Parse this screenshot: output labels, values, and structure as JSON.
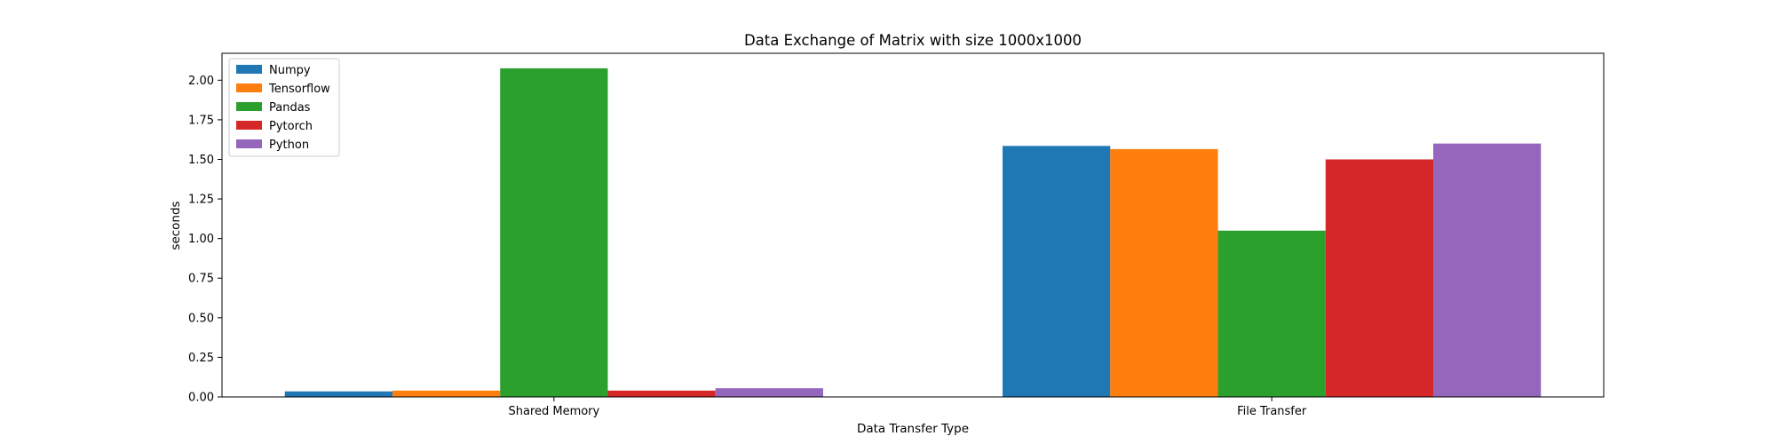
{
  "chart_data": {
    "type": "bar",
    "title": "Data Exchange of Matrix with size 1000x1000",
    "xlabel": "Data Transfer Type",
    "ylabel": "seconds",
    "categories": [
      "Shared Memory",
      "File Transfer"
    ],
    "ylim": [
      0,
      2.17
    ],
    "yticks": [
      "0.00",
      "0.25",
      "0.50",
      "0.75",
      "1.00",
      "1.25",
      "1.50",
      "1.75",
      "2.00"
    ],
    "grid": false,
    "legend_position": "top-left",
    "series": [
      {
        "name": "Numpy",
        "color": "#1f77b4",
        "values": [
          0.035,
          1.585
        ]
      },
      {
        "name": "Tensorflow",
        "color": "#ff7f0e",
        "values": [
          0.04,
          1.565
        ]
      },
      {
        "name": "Pandas",
        "color": "#2ca02c",
        "values": [
          2.075,
          1.05
        ]
      },
      {
        "name": "Pytorch",
        "color": "#d62728",
        "values": [
          0.04,
          1.5
        ]
      },
      {
        "name": "Python",
        "color": "#9467bd",
        "values": [
          0.055,
          1.6
        ]
      }
    ]
  }
}
